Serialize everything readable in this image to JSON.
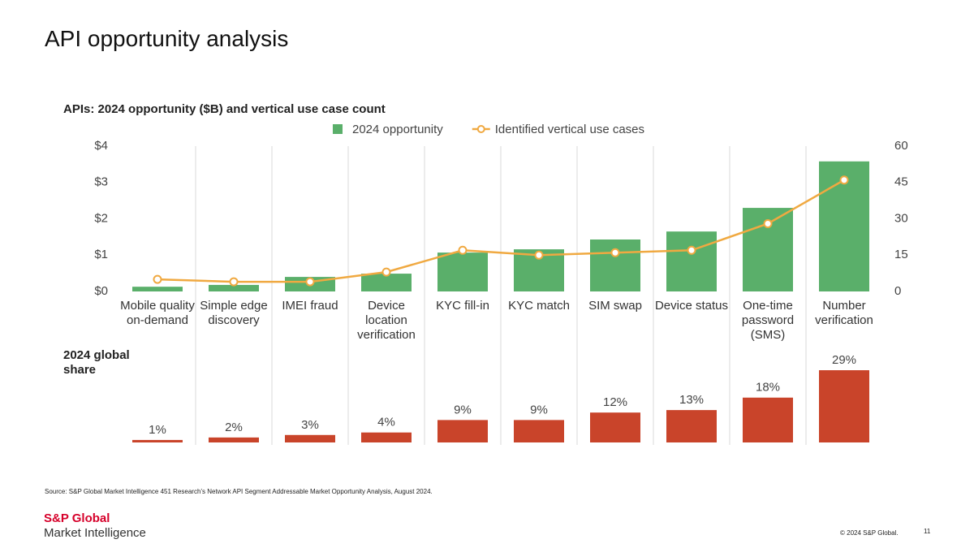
{
  "slide": {
    "title": "API opportunity analysis",
    "source": "Source: S&P Global Market Intelligence 451 Research’s Network API Segment Addressable Market Opportunity Analysis, August 2024.",
    "logo_top": "S&P Global",
    "logo_bottom": "Market Intelligence",
    "copyright": "© 2024 S&P Global.",
    "page": "11"
  },
  "chart_data": [
    {
      "type": "bar-line",
      "title": "APIs: 2024 opportunity ($B) and vertical use case count",
      "categories": [
        "Mobile quality on-demand",
        "Simple edge discovery",
        "IMEI fraud",
        "Device location verification",
        "KYC fill-in",
        "KYC match",
        "SIM swap",
        "Device status",
        "One-time password (SMS)",
        "Number verification"
      ],
      "series": [
        {
          "name": "2024 opportunity",
          "type": "bar",
          "color": "#5aaf6a",
          "values": [
            0.13,
            0.18,
            0.4,
            0.49,
            1.07,
            1.16,
            1.43,
            1.65,
            2.3,
            3.58
          ]
        },
        {
          "name": "Identified vertical use cases",
          "type": "line",
          "axis": "y2",
          "color": "#f0a941",
          "values": [
            5,
            4,
            4,
            8,
            17,
            15,
            16,
            17,
            28,
            46
          ]
        }
      ],
      "ylim": [
        0,
        4
      ],
      "yticks": [
        {
          "value": 0,
          "label": "$0"
        },
        {
          "value": 1,
          "label": "$1"
        },
        {
          "value": 2,
          "label": "$2"
        },
        {
          "value": 3,
          "label": "$3"
        },
        {
          "value": 4,
          "label": "$4"
        }
      ],
      "y2lim": [
        0,
        60
      ],
      "y2ticks": [
        0,
        15,
        30,
        45,
        60
      ],
      "legend": "top"
    },
    {
      "type": "bar",
      "title": "2024 global share",
      "color": "#c9442a",
      "values": [
        1,
        2,
        3,
        4,
        9,
        9,
        12,
        13,
        18,
        29
      ],
      "value_labels": [
        "1%",
        "2%",
        "3%",
        "4%",
        "9%",
        "9%",
        "12%",
        "13%",
        "18%",
        "29%"
      ]
    }
  ]
}
